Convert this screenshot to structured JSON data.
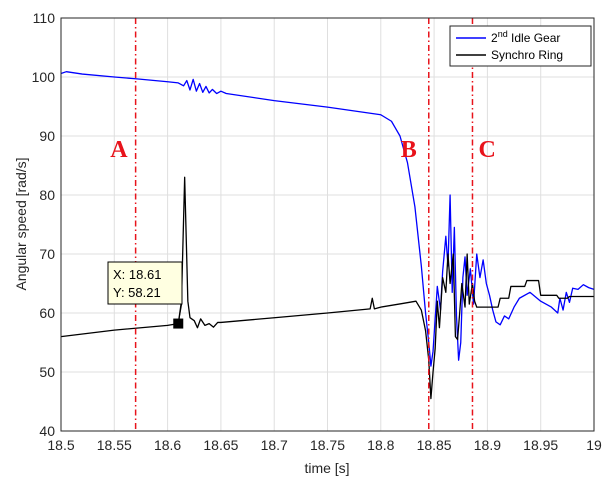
{
  "chart_data": {
    "type": "line",
    "xlabel": "time [s]",
    "ylabel": "Angular speed [rad/s]",
    "xlim": [
      18.5,
      19
    ],
    "ylim": [
      40,
      110
    ],
    "x_ticks": [
      "18.5",
      "18.55",
      "18.6",
      "18.65",
      "18.7",
      "18.75",
      "18.8",
      "18.85",
      "18.9",
      "18.95",
      "19"
    ],
    "y_ticks": [
      "40",
      "50",
      "60",
      "70",
      "80",
      "90",
      "100",
      "110"
    ],
    "grid": true,
    "legend_position": "top-right",
    "legend": [
      {
        "base": "2",
        "sup": "nd",
        "rest": " Idle Gear",
        "color": "#0000ff"
      },
      {
        "base": "Synchro Ring",
        "sup": "",
        "rest": "",
        "color": "#000000"
      }
    ],
    "series": [
      {
        "name": "2nd Idle Gear",
        "color": "#0000ff",
        "points": [
          [
            18.5,
            100.6
          ],
          [
            18.505,
            100.9
          ],
          [
            18.52,
            100.5
          ],
          [
            18.55,
            100.0
          ],
          [
            18.57,
            99.7
          ],
          [
            18.6,
            99.2
          ],
          [
            18.61,
            99.0
          ],
          [
            18.615,
            98.5
          ],
          [
            18.618,
            99.4
          ],
          [
            18.621,
            97.8
          ],
          [
            18.624,
            99.6
          ],
          [
            18.627,
            97.6
          ],
          [
            18.63,
            98.9
          ],
          [
            18.633,
            97.4
          ],
          [
            18.636,
            98.4
          ],
          [
            18.639,
            97.3
          ],
          [
            18.642,
            97.9
          ],
          [
            18.646,
            97.2
          ],
          [
            18.65,
            97.6
          ],
          [
            18.655,
            97.2
          ],
          [
            18.7,
            96.0
          ],
          [
            18.75,
            94.9
          ],
          [
            18.8,
            93.6
          ],
          [
            18.81,
            92.5
          ],
          [
            18.818,
            90.0
          ],
          [
            18.825,
            85.5
          ],
          [
            18.832,
            78.0
          ],
          [
            18.838,
            68.0
          ],
          [
            18.842,
            60.0
          ],
          [
            18.845,
            55.0
          ],
          [
            18.847,
            51.0
          ],
          [
            18.849,
            53.5
          ],
          [
            18.851,
            59.0
          ],
          [
            18.853,
            64.5
          ],
          [
            18.856,
            60.5
          ],
          [
            18.858,
            67.0
          ],
          [
            18.861,
            73.0
          ],
          [
            18.863,
            68.0
          ],
          [
            18.865,
            80.0
          ],
          [
            18.867,
            63.5
          ],
          [
            18.869,
            74.5
          ],
          [
            18.871,
            59.5
          ],
          [
            18.873,
            52.0
          ],
          [
            18.875,
            55.0
          ],
          [
            18.877,
            66.0
          ],
          [
            18.879,
            69.5
          ],
          [
            18.881,
            63.0
          ],
          [
            18.884,
            67.5
          ],
          [
            18.887,
            61.5
          ],
          [
            18.89,
            70.0
          ],
          [
            18.893,
            66.0
          ],
          [
            18.896,
            69.0
          ],
          [
            18.899,
            65.0
          ],
          [
            18.902,
            63.0
          ],
          [
            18.905,
            60.5
          ],
          [
            18.908,
            58.5
          ],
          [
            18.912,
            58.0
          ],
          [
            18.916,
            59.5
          ],
          [
            18.92,
            59.0
          ],
          [
            18.925,
            61.0
          ],
          [
            18.93,
            62.5
          ],
          [
            18.94,
            63.5
          ],
          [
            18.95,
            62.0
          ],
          [
            18.96,
            61.0
          ],
          [
            18.966,
            60.0
          ],
          [
            18.968,
            62.5
          ],
          [
            18.971,
            60.5
          ],
          [
            18.974,
            63.5
          ],
          [
            18.977,
            61.8
          ],
          [
            18.98,
            64.2
          ],
          [
            18.985,
            64.0
          ],
          [
            18.99,
            64.8
          ],
          [
            18.995,
            64.3
          ],
          [
            19.0,
            64.0
          ]
        ]
      },
      {
        "name": "Synchro Ring",
        "color": "#000000",
        "points": [
          [
            18.5,
            56.0
          ],
          [
            18.55,
            57.1
          ],
          [
            18.6,
            57.9
          ],
          [
            18.61,
            58.2
          ],
          [
            18.613,
            62.0
          ],
          [
            18.616,
            83.0
          ],
          [
            18.619,
            62.0
          ],
          [
            18.621,
            59.2
          ],
          [
            18.625,
            58.7
          ],
          [
            18.628,
            57.5
          ],
          [
            18.631,
            59.0
          ],
          [
            18.635,
            57.9
          ],
          [
            18.639,
            58.2
          ],
          [
            18.643,
            57.6
          ],
          [
            18.647,
            58.4
          ],
          [
            18.65,
            58.4
          ],
          [
            18.7,
            59.2
          ],
          [
            18.75,
            60.0
          ],
          [
            18.79,
            60.7
          ],
          [
            18.792,
            62.5
          ],
          [
            18.794,
            60.7
          ],
          [
            18.8,
            61.0
          ],
          [
            18.82,
            61.6
          ],
          [
            18.833,
            62.0
          ],
          [
            18.838,
            60.5
          ],
          [
            18.842,
            57.0
          ],
          [
            18.845,
            52.0
          ],
          [
            18.847,
            45.5
          ],
          [
            18.849,
            50.0
          ],
          [
            18.851,
            54.0
          ],
          [
            18.853,
            62.0
          ],
          [
            18.855,
            57.5
          ],
          [
            18.858,
            66.0
          ],
          [
            18.861,
            63.5
          ],
          [
            18.863,
            70.0
          ],
          [
            18.865,
            65.0
          ],
          [
            18.868,
            70.0
          ],
          [
            18.87,
            56.0
          ],
          [
            18.872,
            55.5
          ],
          [
            18.874,
            60.0
          ],
          [
            18.876,
            65.0
          ],
          [
            18.879,
            61.0
          ],
          [
            18.881,
            70.0
          ],
          [
            18.883,
            61.5
          ],
          [
            18.886,
            65.0
          ],
          [
            18.888,
            62.0
          ],
          [
            18.89,
            61.0
          ],
          [
            18.91,
            61.0
          ],
          [
            18.912,
            62.5
          ],
          [
            18.92,
            62.5
          ],
          [
            18.922,
            64.5
          ],
          [
            18.935,
            64.5
          ],
          [
            18.937,
            65.5
          ],
          [
            18.948,
            65.5
          ],
          [
            18.95,
            63.0
          ],
          [
            18.965,
            63.0
          ],
          [
            18.967,
            62.5
          ],
          [
            18.975,
            62.5
          ],
          [
            18.977,
            62.8
          ],
          [
            19.0,
            62.8
          ]
        ]
      }
    ],
    "vertical_markers": [
      {
        "label": "A",
        "x": 18.57,
        "label_y": 88,
        "color": "#e8131b"
      },
      {
        "label": "B",
        "x": 18.845,
        "label_y": 88,
        "color": "#e8131b"
      },
      {
        "label": "C",
        "x": 18.886,
        "label_y": 88,
        "color": "#e8131b"
      }
    ],
    "data_tip": {
      "x": 18.61,
      "y": 58.21,
      "x_text": "X: 18.61",
      "y_text": "Y: 58.21"
    }
  }
}
